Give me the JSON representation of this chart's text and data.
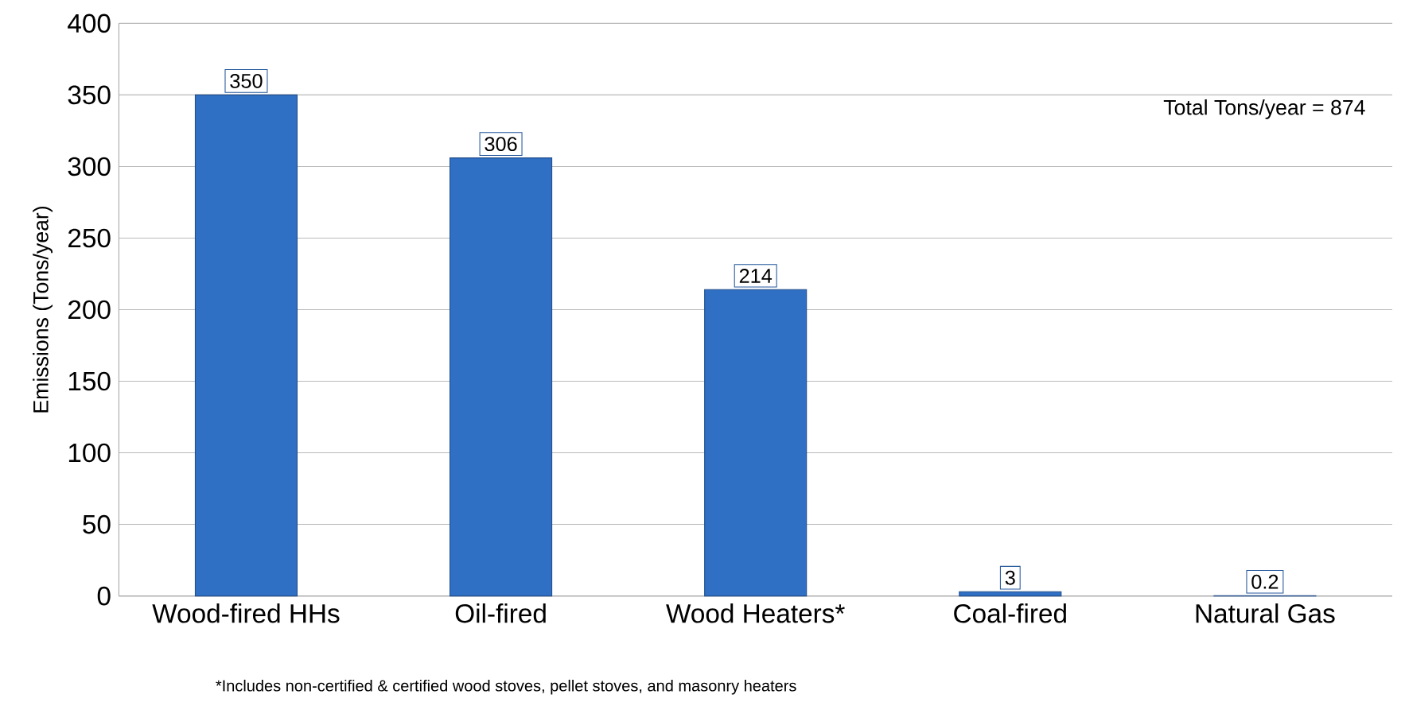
{
  "chart_data": {
    "type": "bar",
    "ylabel": "Emissions (Tons/year)",
    "categories": [
      "Wood-fired HHs",
      "Oil-fired",
      "Wood Heaters*",
      "Coal-fired",
      "Natural Gas"
    ],
    "values": [
      350,
      306,
      214,
      3,
      0.2
    ],
    "color": "#2f6fc4",
    "ylim": [
      0,
      400
    ],
    "yticks": [
      0,
      50,
      100,
      150,
      200,
      250,
      300,
      350,
      400
    ],
    "grid": "y",
    "data_labels": true,
    "annotations": [
      {
        "text": "Total Tons/year = 874"
      },
      {
        "text": "*Includes non-certified & certified wood stoves, pellet stoves, and masonry heaters"
      }
    ]
  }
}
